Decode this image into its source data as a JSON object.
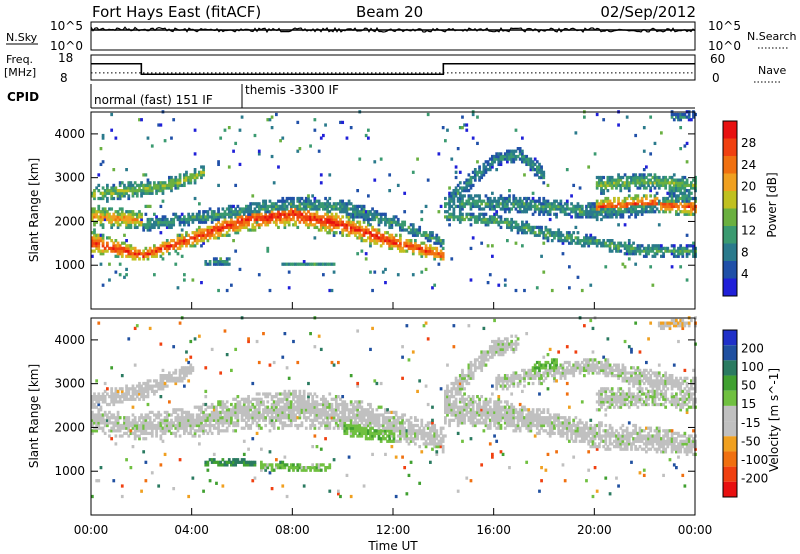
{
  "header": {
    "title": "Fort Hays East (fitACF)",
    "beam": "Beam 20",
    "date": "02/Sep/2012"
  },
  "panels": {
    "nsky_label": "N.Sky",
    "nsky_ticks": [
      "10^5",
      "10^0"
    ],
    "nsearch_label": "N.Search",
    "nsearch_ticks": [
      "10^5",
      "10^0"
    ],
    "freq_label": "Freq.",
    "freq_unit": "[MHz]",
    "freq_ticks": [
      "18",
      "8"
    ],
    "nave_label": "Nave",
    "nave_ticks": [
      "60",
      "0"
    ],
    "cpid_label": "CPID",
    "cpid_segments": [
      {
        "label": "normal (fast) 151 IF",
        "start": 0,
        "end": 6
      },
      {
        "label": "themis -3300 IF",
        "start": 6,
        "end": 24
      }
    ],
    "freq_steps": [
      {
        "start": 0,
        "end": 2,
        "mhz": 14.5
      },
      {
        "start": 2,
        "end": 14,
        "mhz": 10.3
      },
      {
        "start": 14,
        "end": 24,
        "mhz": 14.5
      }
    ],
    "nave_level": 17
  },
  "colors": {
    "power_scale": [
      "#2020d8",
      "#2050a8",
      "#2a7a8c",
      "#3a9a70",
      "#6ab040",
      "#c0c020",
      "#f0a020",
      "#f07010",
      "#f04010",
      "#e81010"
    ],
    "velocity_scale": [
      "#2030c8",
      "#2050a0",
      "#2a7a60",
      "#40a030",
      "#70c040",
      "#c0c0c0",
      "#c0c0c0",
      "#f0a020",
      "#f07010",
      "#f04010",
      "#e81010"
    ]
  },
  "chart_data": [
    {
      "type": "heatmap",
      "name": "power",
      "ylabel": "Slant Range [km]",
      "x_unit": "hours UT",
      "xlim": [
        0,
        24
      ],
      "ylim": [
        0,
        4500
      ],
      "y_ticks": [
        "1000",
        "2000",
        "3000",
        "4000"
      ],
      "colorbar_label": "Power [dB]",
      "colorbar_ticks": [
        "4",
        "8",
        "12",
        "16",
        "20",
        "24",
        "28"
      ],
      "colorbar_range": [
        0,
        30
      ],
      "bands": [
        {
          "x": [
            0,
            2,
            4,
            6,
            8,
            10,
            12,
            14
          ],
          "center": [
            1500,
            1200,
            1600,
            2000,
            2150,
            1900,
            1500,
            1200
          ],
          "width": [
            250,
            150,
            200,
            250,
            300,
            250,
            200,
            150
          ],
          "peak": 26
        },
        {
          "x": [
            2,
            4,
            6,
            8,
            10,
            12,
            14
          ],
          "center": [
            1900,
            2050,
            2200,
            2350,
            2300,
            1950,
            1500
          ],
          "width": [
            150,
            150,
            180,
            200,
            200,
            150,
            120
          ],
          "peak": 10
        },
        {
          "x": [
            0,
            1.5,
            3,
            4.5
          ],
          "center": [
            2600,
            2700,
            2800,
            3100
          ],
          "width": [
            200,
            200,
            180,
            150
          ],
          "peak": 14
        },
        {
          "x": [
            0,
            2
          ],
          "center": [
            2100,
            2000
          ],
          "width": [
            250,
            200
          ],
          "peak": 20
        },
        {
          "x": [
            14,
            16,
            18,
            20,
            22,
            24
          ],
          "center": [
            2100,
            2000,
            1700,
            1500,
            1300,
            1300
          ],
          "width": [
            150,
            150,
            150,
            150,
            150,
            120
          ],
          "peak": 11
        },
        {
          "x": [
            14,
            15,
            16,
            17,
            18
          ],
          "center": [
            2300,
            2900,
            3400,
            3500,
            3000
          ],
          "width": [
            250,
            200,
            150,
            150,
            200
          ],
          "peak": 9
        },
        {
          "x": [
            14,
            16,
            18,
            20,
            22,
            24
          ],
          "center": [
            2400,
            2400,
            2300,
            2200,
            2300,
            2600
          ],
          "width": [
            200,
            200,
            200,
            200,
            200,
            200
          ],
          "peak": 10
        },
        {
          "x": [
            20,
            22,
            24
          ],
          "center": [
            2300,
            2400,
            2300
          ],
          "width": [
            200,
            200,
            200
          ],
          "peak": 24
        },
        {
          "x": [
            20,
            22,
            24
          ],
          "center": [
            2800,
            2900,
            2800
          ],
          "width": [
            200,
            200,
            200
          ],
          "peak": 13
        },
        {
          "x": [
            4.5,
            5.5
          ],
          "center": [
            1050,
            1050
          ],
          "width": [
            80,
            80
          ],
          "peak": 10
        },
        {
          "x": [
            7.5,
            9.5
          ],
          "center": [
            1000,
            1000
          ],
          "width": [
            60,
            60
          ],
          "peak": 9
        },
        {
          "x": [
            23,
            24
          ],
          "center": [
            4350,
            4400
          ],
          "width": [
            100,
            100
          ],
          "peak": 8
        }
      ]
    },
    {
      "type": "heatmap",
      "name": "velocity",
      "ylabel": "Slant Range [km]",
      "xlabel": "Time UT",
      "x_unit": "hours UT",
      "xlim": [
        0,
        24
      ],
      "x_ticks": [
        "00:00",
        "04:00",
        "08:00",
        "12:00",
        "16:00",
        "20:00",
        "00:00"
      ],
      "ylim": [
        0,
        4500
      ],
      "y_ticks": [
        "1000",
        "2000",
        "3000",
        "4000"
      ],
      "colorbar_label": "Velocity [m s^-1]",
      "colorbar_ticks": [
        "200",
        "100",
        "50",
        "15",
        "-15",
        "-50",
        "-100",
        "-200"
      ],
      "colorbar_range": [
        -250,
        250
      ],
      "bands": [
        {
          "x": [
            0,
            2,
            4,
            6,
            8,
            10,
            12,
            14
          ],
          "center": [
            2100,
            2000,
            2100,
            2300,
            2400,
            2300,
            2000,
            1700
          ],
          "width": [
            300,
            300,
            350,
            400,
            450,
            400,
            350,
            300
          ],
          "v": 0
        },
        {
          "x": [
            0,
            2,
            4
          ],
          "center": [
            2600,
            2800,
            3300
          ],
          "width": [
            200,
            200,
            150
          ],
          "v": -40
        },
        {
          "x": [
            4.5,
            6.5
          ],
          "center": [
            1200,
            1150
          ],
          "width": [
            80,
            80
          ],
          "v": 120
        },
        {
          "x": [
            6.5,
            9.5
          ],
          "center": [
            1100,
            1050
          ],
          "width": [
            100,
            100
          ],
          "v": 45
        },
        {
          "x": [
            10,
            12
          ],
          "center": [
            2000,
            1800
          ],
          "width": [
            200,
            200
          ],
          "v": 50
        },
        {
          "x": [
            14,
            16,
            18,
            20,
            22,
            24
          ],
          "center": [
            2400,
            2300,
            2100,
            1800,
            1700,
            1600
          ],
          "width": [
            400,
            350,
            300,
            300,
            300,
            250
          ],
          "v": 0
        },
        {
          "x": [
            14,
            15,
            16,
            17
          ],
          "center": [
            2600,
            3200,
            3800,
            3900
          ],
          "width": [
            300,
            250,
            200,
            200
          ],
          "v": 0
        },
        {
          "x": [
            16,
            18,
            20,
            22,
            24
          ],
          "center": [
            3000,
            3200,
            3400,
            3100,
            2900
          ],
          "width": [
            200,
            200,
            200,
            200,
            200
          ],
          "v": 0
        },
        {
          "x": [
            20,
            22,
            24
          ],
          "center": [
            2600,
            2700,
            2600
          ],
          "width": [
            250,
            250,
            250
          ],
          "v": 10
        },
        {
          "x": [
            17.5,
            18.5
          ],
          "center": [
            3300,
            3400
          ],
          "width": [
            150,
            150
          ],
          "v": 60
        },
        {
          "x": [
            22.5,
            24
          ],
          "center": [
            4300,
            4400
          ],
          "width": [
            100,
            100
          ],
          "v": -60
        }
      ]
    }
  ]
}
